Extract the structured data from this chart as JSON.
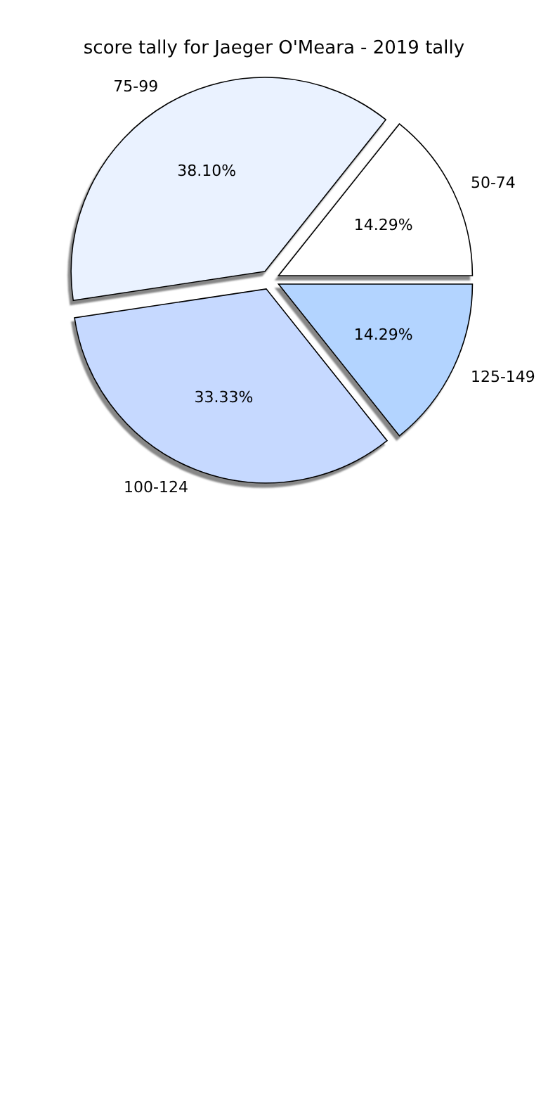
{
  "chart_data": {
    "type": "pie",
    "title": "score tally for Jaeger O'Meara - 2019 tally",
    "categories": [
      "50-74",
      "75-99",
      "100-124",
      "125-149"
    ],
    "values": [
      14.29,
      38.1,
      33.33,
      14.29
    ],
    "colors": [
      "#ffffff",
      "#eaf2ff",
      "#c6d9ff",
      "#b3d4ff"
    ],
    "value_labels": [
      "14.29%",
      "38.10%",
      "33.33%",
      "14.29%"
    ]
  }
}
